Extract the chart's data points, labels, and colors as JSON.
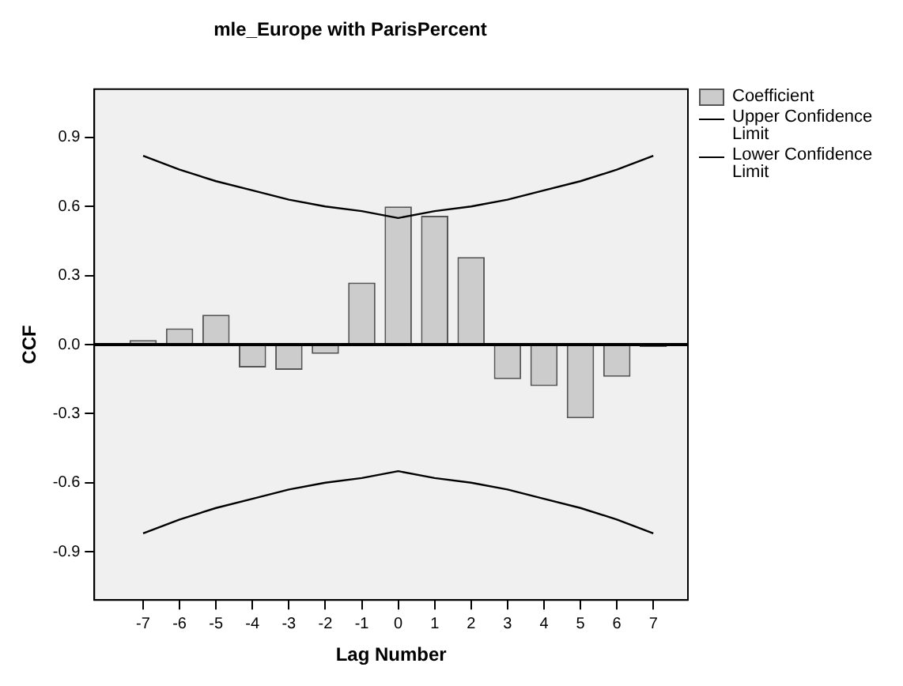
{
  "chart_data": {
    "type": "bar",
    "title": "mle_Europe with ParisPercent",
    "xlabel": "Lag Number",
    "ylabel": "CCF",
    "categories": [
      "-7",
      "-6",
      "-5",
      "-4",
      "-3",
      "-2",
      "-1",
      "0",
      "1",
      "2",
      "3",
      "4",
      "5",
      "6",
      "7"
    ],
    "series": [
      {
        "name": "Coefficient",
        "color": "#cccccc",
        "values": [
          0.02,
          0.07,
          0.13,
          -0.1,
          -0.11,
          -0.04,
          0.27,
          0.6,
          0.56,
          0.38,
          -0.15,
          -0.18,
          -0.32,
          -0.14,
          -0.01
        ]
      },
      {
        "name": "Upper Confidence Limit",
        "type": "line",
        "color": "#000000",
        "values": [
          0.82,
          0.76,
          0.71,
          0.67,
          0.63,
          0.6,
          0.58,
          0.55,
          0.58,
          0.6,
          0.63,
          0.67,
          0.71,
          0.76,
          0.82
        ]
      },
      {
        "name": "Lower Confidence Limit",
        "type": "line",
        "color": "#000000",
        "values": [
          -0.82,
          -0.76,
          -0.71,
          -0.67,
          -0.63,
          -0.6,
          -0.58,
          -0.55,
          -0.58,
          -0.6,
          -0.63,
          -0.67,
          -0.71,
          -0.76,
          -0.82
        ]
      }
    ],
    "ylim": [
      -1.11,
      1.11
    ],
    "yticks": [
      -0.9,
      -0.6,
      -0.3,
      {
        "value": 0,
        "label": "0.0"
      },
      0.3,
      0.6,
      0.9
    ],
    "ref_lines": [
      {
        "axis": "y",
        "value": 0,
        "color": "#000000"
      }
    ],
    "grid": false,
    "legend": "top right",
    "marker": "none"
  }
}
